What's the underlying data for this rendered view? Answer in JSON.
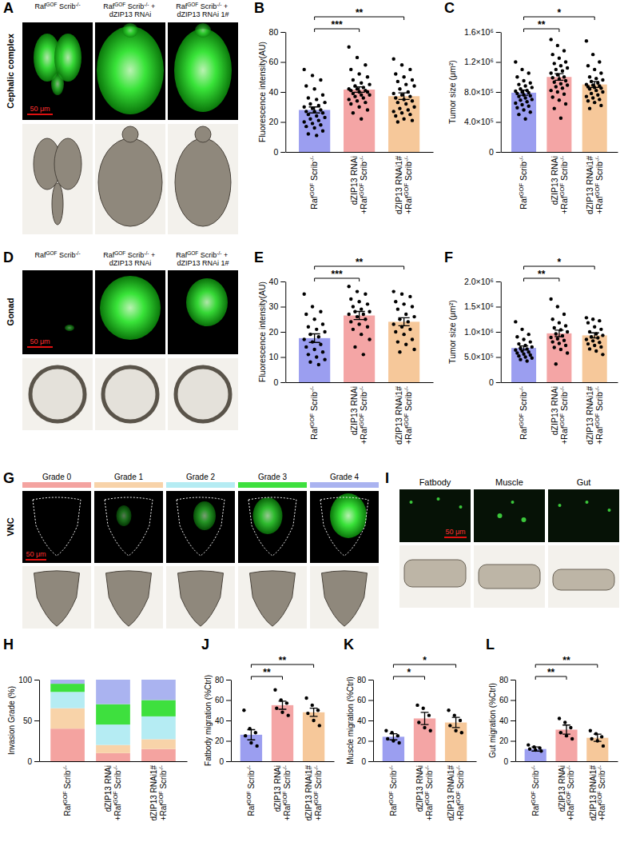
{
  "chart_data": [
    {
      "type": "bar",
      "panel": "B",
      "y_label": "Fluorescence intensity(AU)",
      "categories": [
        "RafGOF Scrib-/-",
        "dZIP13 RNAi +RafGOF Scrib-/-",
        "dZIP13 RNAi1# +RafGOF Scrib-/-"
      ],
      "values": [
        28,
        41.6,
        37.2
      ],
      "errors": [
        2,
        1.8,
        2.2
      ],
      "colors": [
        "#9b9ef0",
        "#f4a5a5",
        "#f6c89a"
      ],
      "points": [
        [
          55,
          51,
          48,
          44,
          42,
          38,
          36,
          35,
          33,
          32,
          31,
          30,
          29,
          28,
          27,
          27,
          26,
          25,
          24,
          23,
          22,
          21,
          20,
          19,
          18,
          17,
          16,
          14,
          12,
          11
        ],
        [
          70,
          63,
          58,
          55,
          52,
          50,
          48,
          46,
          45,
          44,
          43,
          42,
          42,
          41,
          41,
          40,
          40,
          39,
          38,
          38,
          37,
          36,
          35,
          34,
          33,
          32,
          30,
          28,
          26,
          22
        ],
        [
          62,
          58,
          55,
          52,
          50,
          48,
          47,
          45,
          44,
          42,
          40,
          39,
          38,
          37,
          36,
          35,
          34,
          33,
          32,
          30,
          29,
          28,
          27,
          26,
          25,
          24,
          22,
          21,
          20
        ]
      ],
      "ylim": [
        0,
        80
      ],
      "yticks": [
        0,
        20,
        40,
        60,
        80
      ],
      "annotations": [
        {
          "text": "***",
          "between": [
            0,
            1
          ]
        },
        {
          "text": "**",
          "between": [
            0,
            2
          ]
        }
      ]
    },
    {
      "type": "bar",
      "panel": "C",
      "y_label": "Tumor size (μm²)",
      "categories": [
        "RafGOF Scrib-/-",
        "dZIP13 RNAi +RafGOF Scrib-/-",
        "dZIP13 RNAi1# +RafGOF Scrib-/-"
      ],
      "values": [
        790000,
        1000000,
        900000
      ],
      "errors": [
        35000,
        45000,
        40000
      ],
      "colors": [
        "#9b9ef0",
        "#f4a5a5",
        "#f6c89a"
      ],
      "points": [
        [
          1200000,
          1100000,
          1050000,
          1000000,
          950000,
          920000,
          900000,
          880000,
          860000,
          840000,
          820000,
          810000,
          800000,
          790000,
          780000,
          760000,
          750000,
          740000,
          720000,
          700000,
          690000,
          670000,
          650000,
          630000,
          610000,
          590000,
          560000,
          530000,
          500000,
          440000
        ],
        [
          1500000,
          1420000,
          1350000,
          1300000,
          1250000,
          1200000,
          1180000,
          1150000,
          1120000,
          1100000,
          1080000,
          1050000,
          1030000,
          1000000,
          990000,
          970000,
          950000,
          930000,
          910000,
          890000,
          870000,
          850000,
          820000,
          800000,
          770000,
          730000,
          690000,
          640000,
          580000,
          450000
        ],
        [
          1480000,
          1300000,
          1200000,
          1150000,
          1100000,
          1050000,
          1000000,
          980000,
          960000,
          940000,
          920000,
          900000,
          890000,
          880000,
          870000,
          860000,
          850000,
          840000,
          820000,
          800000,
          780000,
          760000,
          740000,
          720000,
          700000,
          680000,
          660000,
          620000,
          580000
        ]
      ],
      "ylim": [
        0,
        1600000
      ],
      "yticks": [
        0,
        {
          "value": 400000,
          "label": "4.0×10⁵"
        },
        {
          "value": 800000,
          "label": "8.0×10⁵"
        },
        {
          "value": 1200000,
          "label": "1.2×10⁶"
        },
        {
          "value": 1600000,
          "label": "1.6×10⁶"
        }
      ],
      "annotations": [
        {
          "text": "**",
          "between": [
            0,
            1
          ]
        },
        {
          "text": "*",
          "between": [
            0,
            2
          ]
        }
      ]
    },
    {
      "type": "bar",
      "panel": "E",
      "y_label": "Fluorescence intensity(AU)",
      "categories": [
        "RafGOF Scrib-/-",
        "dZIP13 RNAi +RafGOF Scrib-/-",
        "dZIP13 RNAi1# +RafGOF Scrib-/-"
      ],
      "values": [
        17.5,
        26.5,
        24
      ],
      "errors": [
        1.7,
        1.6,
        1.6
      ],
      "colors": [
        "#9b9ef0",
        "#f4a5a5",
        "#f6c89a"
      ],
      "points": [
        [
          35,
          30,
          28,
          27,
          25,
          23,
          22,
          21,
          20,
          19,
          18,
          17,
          16,
          15,
          14,
          13,
          12,
          11,
          10,
          9,
          8,
          7
        ],
        [
          38,
          36,
          35,
          33,
          32,
          31,
          30,
          29,
          28,
          28,
          27,
          27,
          26,
          25,
          24,
          23,
          22,
          21,
          19,
          17,
          14,
          11
        ],
        [
          36,
          35,
          34,
          32,
          31,
          30,
          29,
          27,
          26,
          25,
          24,
          23,
          22,
          21,
          20,
          19,
          17,
          16,
          15,
          13,
          12
        ]
      ],
      "ylim": [
        0,
        40
      ],
      "yticks": [
        0,
        10,
        20,
        30,
        40
      ],
      "annotations": [
        {
          "text": "***",
          "between": [
            0,
            1
          ]
        },
        {
          "text": "**",
          "between": [
            0,
            2
          ]
        }
      ]
    },
    {
      "type": "bar",
      "panel": "F",
      "y_label": "Tumor size (μm²)",
      "categories": [
        "RafGOF Scrib-/-",
        "dZIP13 RNAi +RafGOF Scrib-/-",
        "dZIP13 RNAi1# +RafGOF Scrib-/-"
      ],
      "values": [
        680000,
        970000,
        930000
      ],
      "errors": [
        40000,
        65000,
        50000
      ],
      "colors": [
        "#9b9ef0",
        "#f4a5a5",
        "#f6c89a"
      ],
      "points": [
        [
          1200000,
          1050000,
          950000,
          900000,
          850000,
          800000,
          760000,
          730000,
          700000,
          680000,
          660000,
          640000,
          620000,
          600000,
          580000,
          560000,
          540000,
          520000,
          500000,
          480000,
          450000,
          420000
        ],
        [
          1650000,
          1500000,
          1350000,
          1250000,
          1180000,
          1120000,
          1080000,
          1040000,
          1000000,
          960000,
          920000,
          890000,
          860000,
          830000,
          800000,
          770000,
          730000,
          690000,
          650000,
          580000,
          360000
        ],
        [
          1280000,
          1250000,
          1220000,
          1180000,
          1100000,
          1050000,
          1000000,
          960000,
          930000,
          900000,
          880000,
          850000,
          820000,
          790000,
          760000,
          730000,
          700000,
          660000,
          620000,
          550000
        ]
      ],
      "ylim": [
        0,
        2000000
      ],
      "yticks": [
        0,
        {
          "value": 500000,
          "label": "5.0×10⁵"
        },
        {
          "value": 1000000,
          "label": "1.0×10⁶"
        },
        {
          "value": 1500000,
          "label": "1.5×10⁶"
        },
        {
          "value": 2000000,
          "label": "2.0×10⁶"
        }
      ],
      "annotations": [
        {
          "text": "**",
          "between": [
            0,
            1
          ]
        },
        {
          "text": "*",
          "between": [
            0,
            2
          ]
        }
      ]
    },
    {
      "type": "bar",
      "panel": "H",
      "stacked": true,
      "legend": "top",
      "y_label": "Invasion Grade (%)",
      "categories": [
        "RafGOF Scrib-/-",
        "dZIP13 RNAi +RafGOF Scrib-/-",
        "dZIP13 RNAi1# +RafGOF Scrib-/-"
      ],
      "series": [
        {
          "name": "Grade 0",
          "color": "#f4a3a0",
          "values": [
            40,
            10,
            15
          ]
        },
        {
          "name": "Grade 1",
          "color": "#f8d3a9",
          "values": [
            25,
            10,
            12
          ]
        },
        {
          "name": "Grade 2",
          "color": "#b5ecf3",
          "values": [
            20,
            25,
            28
          ]
        },
        {
          "name": "Grade 3",
          "color": "#3ee03e",
          "values": [
            10,
            25,
            20
          ]
        },
        {
          "name": "Grade 4",
          "color": "#aab3f0",
          "values": [
            5,
            30,
            25
          ]
        }
      ],
      "ylim": [
        0,
        100
      ],
      "yticks": [
        0,
        50,
        100
      ]
    },
    {
      "type": "bar",
      "panel": "J",
      "y_label": "Fatbody migration (%Ctrl)",
      "categories": [
        "RafGOF Scrib-/-",
        "dZIP13 RNAi +RafGOF Scrib-/-",
        "dZIP13 RNAi1# +RafGOF Scrib-/-"
      ],
      "values": [
        26,
        55,
        48
      ],
      "errors": [
        5,
        4,
        4
      ],
      "colors": [
        "#9b9ef0",
        "#f4a5a5",
        "#f6c89a"
      ],
      "points": [
        [
          50,
          32,
          28,
          25,
          18,
          15
        ],
        [
          70,
          60,
          57,
          52,
          48,
          45
        ],
        [
          62,
          55,
          50,
          47,
          40,
          35
        ]
      ],
      "ylim": [
        0,
        80
      ],
      "yticks": [
        0,
        20,
        40,
        60,
        80
      ],
      "annotations": [
        {
          "text": "**",
          "between": [
            0,
            1
          ]
        },
        {
          "text": "**",
          "between": [
            0,
            2
          ]
        }
      ]
    },
    {
      "type": "bar",
      "panel": "K",
      "y_label": "Muscle migration (%Ctrl)",
      "categories": [
        "RafGOF Scrib-/-",
        "dZIP13 RNAi +RafGOF Scrib-/-",
        "dZIP13 RNAi1# +RafGOF Scrib-/-"
      ],
      "values": [
        24,
        42,
        38
      ],
      "errors": [
        3,
        6,
        5
      ],
      "colors": [
        "#9b9ef0",
        "#f4a5a5",
        "#f6c89a"
      ],
      "points": [
        [
          30,
          28,
          25,
          22,
          20,
          18
        ],
        [
          55,
          52,
          45,
          38,
          33,
          30
        ],
        [
          50,
          45,
          40,
          35,
          30,
          28
        ]
      ],
      "ylim": [
        0,
        80
      ],
      "yticks": [
        0,
        20,
        40,
        60,
        80
      ],
      "annotations": [
        {
          "text": "*",
          "between": [
            0,
            1
          ]
        },
        {
          "text": "*",
          "between": [
            0,
            2
          ]
        }
      ]
    },
    {
      "type": "bar",
      "panel": "L",
      "y_label": "Gut migration (%Ctrl)",
      "categories": [
        "RafGOF Scrib-/-",
        "dZIP13 RNAi +RafGOF Scrib-/-",
        "dZIP13 RNAi1# +RafGOF Scrib-/-"
      ],
      "values": [
        12,
        31,
        23
      ],
      "errors": [
        2,
        4.5,
        3.5
      ],
      "colors": [
        "#9b9ef0",
        "#f4a5a5",
        "#f6c89a"
      ],
      "points": [
        [
          16,
          14,
          13,
          12,
          11,
          10
        ],
        [
          42,
          38,
          33,
          28,
          25,
          22
        ],
        [
          30,
          27,
          24,
          22,
          20,
          15
        ]
      ],
      "ylim": [
        0,
        80
      ],
      "yticks": [
        0,
        20,
        40,
        60,
        80
      ],
      "annotations": [
        {
          "text": "**",
          "between": [
            0,
            1
          ]
        },
        {
          "text": "**",
          "between": [
            0,
            2
          ]
        }
      ]
    }
  ],
  "images": [
    {
      "panel": "A",
      "row_label": "Cephalic complex",
      "columns": [
        "RafGOF Scrib-/-",
        "RafGOF Scrib-/- + dZIP13 RNAi",
        "RafGOF Scrib-/- + dZIP13 RNAi 1#"
      ],
      "scale_bar": "50 μm"
    },
    {
      "panel": "D",
      "row_label": "Gonad",
      "columns": [
        "RafGOF Scrib-/-",
        "RafGOF Scrib-/- + dZIP13 RNAi",
        "RafGOF Scrib-/- + dZIP13 RNAi 1#"
      ],
      "scale_bar": "50 μm"
    },
    {
      "panel": "G",
      "row_label": "VNC",
      "scale_bar": "50 μm"
    },
    {
      "panel": "I",
      "columns": [
        "Fatbody",
        "Muscle",
        "Gut"
      ],
      "scale_bar": "50 μm"
    }
  ]
}
